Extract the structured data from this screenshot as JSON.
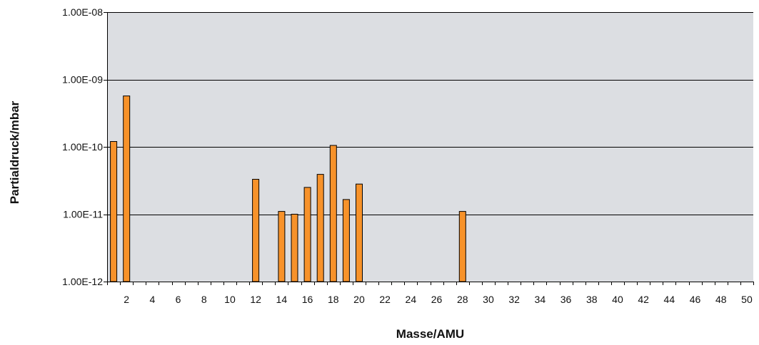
{
  "chart_data": {
    "type": "bar",
    "title": "",
    "xlabel": "Masse/AMU",
    "ylabel": "Partialdruck/mbar",
    "yscale": "log",
    "ylim": [
      1e-12,
      1e-08
    ],
    "xlim": [
      0,
      50
    ],
    "grid": "horizontal",
    "legend": "none",
    "x_ticks": [
      2,
      4,
      6,
      8,
      10,
      12,
      14,
      16,
      18,
      20,
      22,
      24,
      26,
      28,
      30,
      32,
      34,
      36,
      38,
      40,
      42,
      44,
      46,
      48,
      50
    ],
    "y_ticks": [
      {
        "value": 1e-12,
        "label": "1.00E-12"
      },
      {
        "value": 1e-11,
        "label": "1.00E-11"
      },
      {
        "value": 1e-10,
        "label": "1.00E-10"
      },
      {
        "value": 1e-09,
        "label": "1.00E-09"
      },
      {
        "value": 1e-08,
        "label": "1.00E-08"
      }
    ],
    "series": [
      {
        "points": [
          {
            "x": 1,
            "y": 1.2e-10
          },
          {
            "x": 2,
            "y": 5.7e-10
          },
          {
            "x": 12,
            "y": 3.3e-11
          },
          {
            "x": 14,
            "y": 1.1e-11
          },
          {
            "x": 15,
            "y": 1e-11
          },
          {
            "x": 16,
            "y": 2.5e-11
          },
          {
            "x": 17,
            "y": 3.9e-11
          },
          {
            "x": 18,
            "y": 1.05e-10
          },
          {
            "x": 19,
            "y": 1.65e-11
          },
          {
            "x": 20,
            "y": 2.8e-11
          },
          {
            "x": 28,
            "y": 1.1e-11
          }
        ]
      }
    ],
    "colors": {
      "bar_fill": "#f7922a",
      "bar_stroke": "#000000",
      "plot_background": "#dcdee2",
      "gridline": "#000000"
    }
  }
}
